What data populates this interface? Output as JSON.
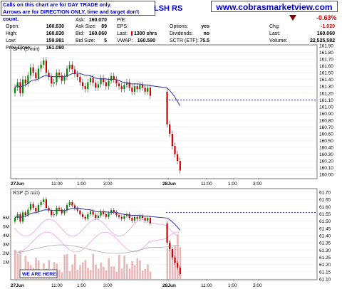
{
  "header": {
    "notice_line1": "Calls on this chart are for DAY TRADE only.",
    "notice_line2": "Arrows are for DIRECTION ONLY, time and target don't count.",
    "ticker": "LSH RS",
    "website": "www.cobrasmarketview.com",
    "change_pct": "-0.63%",
    "quote": {
      "open_label": "Open:",
      "open": "160.630",
      "high_label": "High:",
      "high": "160.830",
      "low_label": "Low:",
      "low": "159.981",
      "prev_label": "Prev Close:",
      "prev": "161.080",
      "ask_label": "Ask:",
      "ask": "160.070",
      "asksize_label": "Ask Size:",
      "asksize": "89",
      "bid_label": "Bid:",
      "bid": "160.060",
      "bidsize_label": "Bid Size:",
      "bidsize": "5",
      "pe_label": "P/E:",
      "eps_label": "EPS:",
      "last_label": "Last:",
      "last_shares": "1300 shrs",
      "vwap_label": "VWAP:",
      "vwap": "160.590",
      "options_label": "Options:",
      "options": "yes",
      "dividends_label": "Dividends:",
      "dividends": "no",
      "sctr_label": "SCTR (ETF):",
      "sctr": "75.5",
      "chg_label": "Chg:",
      "chg": "-1.020",
      "lastpx_label": "Last:",
      "lastpx": "160.060",
      "volume_label": "Volume:",
      "volume": "22,525,582"
    }
  },
  "colors": {
    "up": "#008800",
    "down": "#cc0000",
    "ma": "#333399",
    "ref": "#0000cc",
    "accent": "#0000cc"
  },
  "chart_data": [
    {
      "type": "candlestick",
      "title": "SPY (5 min)",
      "ylim": [
        159.95,
        161.9
      ],
      "yticks": [
        "161.90",
        "161.80",
        "161.70",
        "161.60",
        "161.50",
        "161.40",
        "161.30",
        "161.20",
        "161.10",
        "161.00",
        "160.90",
        "160.80",
        "160.70",
        "160.60",
        "160.50",
        "160.40",
        "160.30",
        "160.20",
        "160.10",
        "160.00"
      ],
      "xticks": [
        "27Jun",
        "11:00",
        "1:00",
        "3:00",
        "28Jun",
        "11:00",
        "1:00",
        "3:00"
      ],
      "close": [
        161.28,
        161.36,
        161.2,
        161.4,
        161.34,
        161.46,
        161.58,
        161.5,
        161.42,
        161.56,
        161.62,
        161.68,
        161.5,
        161.44,
        161.34,
        161.36,
        161.5,
        161.46,
        161.38,
        161.44,
        161.56,
        161.62,
        161.55,
        161.48,
        161.44,
        161.36,
        161.3,
        161.26,
        161.36,
        161.42,
        161.35,
        161.28,
        161.33,
        161.42,
        161.36,
        161.3,
        161.38,
        161.45,
        161.4,
        161.34,
        161.3,
        161.26,
        161.32,
        161.36,
        161.28,
        161.22,
        161.3,
        161.26,
        161.32,
        161.28,
        161.22,
        161.28,
        161.16,
        160.74,
        160.6,
        160.42,
        160.3,
        160.2,
        160.06
      ],
      "ma_label": "20-period moving average",
      "reference_line": 161.1
    },
    {
      "type": "candlestick",
      "title": "RSP (5 min)",
      "ylim": [
        61.1,
        61.72
      ],
      "yticks": [
        "61.70",
        "61.65",
        "61.60",
        "61.55",
        "61.50",
        "61.45",
        "61.40",
        "61.35",
        "61.30",
        "61.25",
        "61.20",
        "61.15",
        "61.10"
      ],
      "volume_ticks": [
        "6M",
        "5M",
        "4M",
        "3M",
        "2M",
        "1M"
      ],
      "reference_line": 61.56,
      "annotation": "WE ARE HERE!"
    }
  ]
}
